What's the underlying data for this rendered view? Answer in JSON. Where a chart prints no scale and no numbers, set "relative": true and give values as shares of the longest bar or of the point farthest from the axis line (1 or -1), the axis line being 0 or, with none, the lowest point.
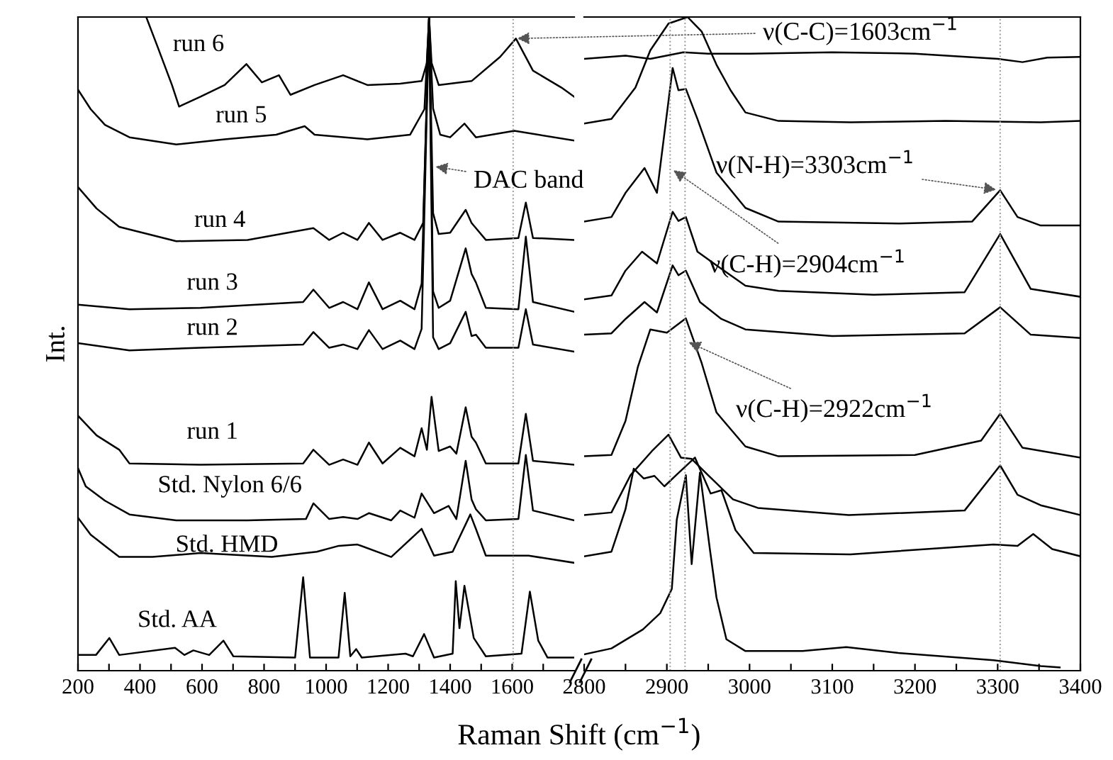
{
  "chart_data": [
    {
      "type": "line",
      "relative": true,
      "ylabel": "Int.",
      "xlabel": "Raman Shift (cm$^{−1}$)",
      "xlim": [
        200,
        1800
      ],
      "xticks": [
        200,
        {
          "value": 300,
          "label": null
        },
        400,
        {
          "value": 500,
          "label": null
        },
        600,
        {
          "value": 700,
          "label": null
        },
        800,
        {
          "value": 900,
          "label": null
        },
        1000,
        {
          "value": 1100,
          "label": null
        },
        1200,
        {
          "value": 1300,
          "label": null
        },
        1400,
        {
          "value": 1500,
          "label": null
        },
        1600,
        {
          "value": 1700,
          "label": null
        }
      ],
      "marker": "none",
      "line_style": "solid",
      "ref_lines": [
        {
          "axis": "x",
          "value": 1603,
          "color": "#999999",
          "line_style": "dotted"
        }
      ],
      "annotations": [
        {
          "text": "ν(C-C)=1603cm$^{−1}$",
          "x": 1603,
          "y": 0.967
        },
        {
          "text": "DAC band",
          "x": 1340,
          "y": 0.772
        }
      ],
      "series": [
        {
          "name": "run 6",
          "color": "#000000",
          "x": [
            420,
            457,
            503,
            526,
            595,
            673,
            743,
            793,
            848,
            885,
            963,
            1055,
            1133,
            1239,
            1308,
            1325,
            1332,
            1340,
            1363,
            1469,
            1561,
            1612,
            1667,
            1759,
            1800
          ],
          "values": [
            1.0,
            0.954,
            0.896,
            0.863,
            0.878,
            0.896,
            0.928,
            0.9,
            0.911,
            0.881,
            0.896,
            0.911,
            0.896,
            0.898,
            0.902,
            0.93,
            1.0,
            0.93,
            0.896,
            0.902,
            0.939,
            0.967,
            0.918,
            0.892,
            0.878
          ]
        },
        {
          "name": "run 5",
          "color": "#000000",
          "x": [
            200,
            241,
            287,
            366,
            517,
            673,
            839,
            931,
            963,
            1133,
            1271,
            1317,
            1332,
            1345,
            1368,
            1400,
            1446,
            1483,
            1607,
            1800
          ],
          "values": [
            0.889,
            0.859,
            0.835,
            0.816,
            0.805,
            0.813,
            0.82,
            0.833,
            0.82,
            0.813,
            0.82,
            0.859,
            1.0,
            0.86,
            0.82,
            0.816,
            0.837,
            0.816,
            0.826,
            0.811
          ]
        },
        {
          "name": "run 4",
          "color": "#000000",
          "x": [
            200,
            260,
            333,
            517,
            747,
            959,
            1010,
            1055,
            1101,
            1138,
            1182,
            1239,
            1285,
            1313,
            1332,
            1345,
            1363,
            1400,
            1450,
            1469,
            1483,
            1515,
            1620,
            1644,
            1667,
            1800
          ],
          "values": [
            0.74,
            0.707,
            0.679,
            0.657,
            0.659,
            0.677,
            0.659,
            0.67,
            0.659,
            0.685,
            0.659,
            0.67,
            0.659,
            0.685,
            1.0,
            0.7,
            0.668,
            0.67,
            0.705,
            0.685,
            0.677,
            0.659,
            0.662,
            0.716,
            0.662,
            0.659
          ]
        },
        {
          "name": "run 3",
          "color": "#000000",
          "x": [
            200,
            366,
            595,
            926,
            959,
            1010,
            1055,
            1101,
            1138,
            1182,
            1239,
            1285,
            1308,
            1332,
            1345,
            1363,
            1400,
            1450,
            1469,
            1483,
            1515,
            1620,
            1644,
            1667,
            1800
          ],
          "values": [
            0.56,
            0.553,
            0.555,
            0.564,
            0.583,
            0.555,
            0.564,
            0.553,
            0.594,
            0.553,
            0.566,
            0.553,
            0.592,
            1.0,
            0.58,
            0.555,
            0.566,
            0.646,
            0.607,
            0.594,
            0.555,
            0.553,
            0.664,
            0.564,
            0.549
          ]
        },
        {
          "name": "run 2",
          "color": "#000000",
          "x": [
            200,
            366,
            595,
            926,
            959,
            1010,
            1055,
            1101,
            1138,
            1182,
            1239,
            1285,
            1308,
            1332,
            1345,
            1363,
            1400,
            1450,
            1469,
            1483,
            1515,
            1620,
            1644,
            1667,
            1800
          ],
          "values": [
            0.501,
            0.49,
            0.494,
            0.499,
            0.518,
            0.494,
            0.499,
            0.492,
            0.521,
            0.492,
            0.505,
            0.492,
            0.523,
            1.0,
            0.51,
            0.492,
            0.501,
            0.549,
            0.512,
            0.514,
            0.494,
            0.494,
            0.553,
            0.499,
            0.488
          ]
        },
        {
          "name": "run 1",
          "color": "#000000",
          "x": [
            200,
            260,
            333,
            366,
            595,
            926,
            959,
            1010,
            1055,
            1101,
            1138,
            1182,
            1239,
            1285,
            1308,
            1325,
            1340,
            1363,
            1400,
            1420,
            1450,
            1469,
            1483,
            1515,
            1620,
            1644,
            1667,
            1800
          ],
          "values": [
            0.39,
            0.36,
            0.338,
            0.317,
            0.315,
            0.317,
            0.338,
            0.315,
            0.323,
            0.315,
            0.349,
            0.317,
            0.341,
            0.328,
            0.371,
            0.338,
            0.419,
            0.336,
            0.343,
            0.332,
            0.403,
            0.358,
            0.349,
            0.317,
            0.317,
            0.393,
            0.321,
            0.315
          ]
        },
        {
          "name": "Std. Nylon 6/6",
          "color": "#000000",
          "x": [
            200,
            225,
            287,
            366,
            517,
            747,
            935,
            959,
            1010,
            1055,
            1101,
            1138,
            1210,
            1239,
            1285,
            1308,
            1348,
            1395,
            1420,
            1450,
            1469,
            1483,
            1515,
            1620,
            1644,
            1667,
            1800
          ],
          "values": [
            0.31,
            0.282,
            0.26,
            0.239,
            0.23,
            0.23,
            0.232,
            0.256,
            0.232,
            0.235,
            0.232,
            0.241,
            0.23,
            0.245,
            0.234,
            0.271,
            0.241,
            0.252,
            0.232,
            0.321,
            0.262,
            0.247,
            0.23,
            0.232,
            0.33,
            0.245,
            0.23
          ]
        },
        {
          "name": "Std. HMD",
          "color": "#000000",
          "x": [
            200,
            241,
            287,
            333,
            440,
            595,
            825,
            970,
            1041,
            1101,
            1210,
            1308,
            1348,
            1408,
            1465,
            1483,
            1515,
            1653,
            1800
          ],
          "values": [
            0.234,
            0.208,
            0.191,
            0.174,
            0.174,
            0.18,
            0.174,
            0.182,
            0.191,
            0.193,
            0.174,
            0.217,
            0.176,
            0.182,
            0.239,
            0.217,
            0.176,
            0.176,
            0.165
          ]
        },
        {
          "name": "Std. AA",
          "color": "#000000",
          "x": [
            200,
            258,
            301,
            333,
            513,
            543,
            572,
            623,
            669,
            701,
            900,
            926,
            948,
            1040,
            1060,
            1078,
            1097,
            1115,
            1256,
            1280,
            1316,
            1348,
            1408,
            1418,
            1430,
            1446,
            1476,
            1515,
            1630,
            1657,
            1684,
            1714,
            1800
          ],
          "values": [
            0.024,
            0.024,
            0.05,
            0.024,
            0.035,
            0.024,
            0.031,
            0.024,
            0.046,
            0.022,
            0.02,
            0.143,
            0.02,
            0.02,
            0.119,
            0.022,
            0.033,
            0.02,
            0.026,
            0.022,
            0.056,
            0.02,
            0.026,
            0.137,
            0.065,
            0.13,
            0.05,
            0.022,
            0.026,
            0.121,
            0.046,
            0.02,
            0.02
          ]
        }
      ]
    },
    {
      "type": "line",
      "relative": true,
      "xlim": [
        2800,
        3400
      ],
      "xticks": [
        2800,
        {
          "value": 2850,
          "label": null
        },
        2900,
        {
          "value": 2950,
          "label": null
        },
        3000,
        {
          "value": 3050,
          "label": null
        },
        3100,
        {
          "value": 3150,
          "label": null
        },
        3200,
        {
          "value": 3250,
          "label": null
        },
        3300,
        {
          "value": 3350,
          "label": null
        },
        3400
      ],
      "marker": "none",
      "line_style": "solid",
      "ref_lines": [
        {
          "axis": "x",
          "value": 2904,
          "color": "#999999",
          "line_style": "dotted"
        },
        {
          "axis": "x",
          "value": 2922,
          "color": "#999999",
          "line_style": "dotted"
        },
        {
          "axis": "x",
          "value": 3303,
          "color": "#999999",
          "line_style": "dotted"
        }
      ],
      "annotations": [
        {
          "text": "ν(N-H)=3303cm$^{−1}$",
          "x": 3303,
          "y": 0.735
        },
        {
          "text": "ν(C-H)=2904cm$^{−1}$",
          "x": 2904,
          "y": 0.769
        },
        {
          "text": "ν(C-H)=2922cm$^{−1}$",
          "x": 2922,
          "y": 0.505
        }
      ],
      "series": [
        {
          "color": "#000000",
          "x": [
            2800,
            2850,
            2880,
            2920,
            2950,
            3000,
            3100,
            3200,
            3300,
            3330,
            3360,
            3400
          ],
          "values": [
            0.936,
            0.941,
            0.936,
            0.946,
            0.944,
            0.944,
            0.946,
            0.944,
            0.936,
            0.931,
            0.938,
            0.939
          ]
        },
        {
          "color": "#000000",
          "x": [
            2800,
            2833,
            2862,
            2880,
            2902,
            2925,
            2942,
            2960,
            2977,
            2995,
            3035,
            3122,
            3237,
            3352,
            3400
          ],
          "values": [
            0.837,
            0.844,
            0.892,
            0.949,
            0.99,
            1.0,
            0.978,
            0.927,
            0.888,
            0.854,
            0.841,
            0.839,
            0.841,
            0.839,
            0.841
          ]
        },
        {
          "color": "#000000",
          "x": [
            2800,
            2833,
            2850,
            2873,
            2888,
            2907,
            2914,
            2923,
            2937,
            2960,
            2995,
            3035,
            3180,
            3269,
            3303,
            3324,
            3352,
            3400
          ],
          "values": [
            0.687,
            0.694,
            0.731,
            0.769,
            0.731,
            0.922,
            0.888,
            0.89,
            0.844,
            0.762,
            0.708,
            0.687,
            0.684,
            0.687,
            0.735,
            0.694,
            0.681,
            0.681
          ]
        },
        {
          "color": "#000000",
          "x": [
            2800,
            2833,
            2850,
            2870,
            2888,
            2907,
            2914,
            2923,
            2937,
            2960,
            2995,
            3035,
            3150,
            3260,
            3303,
            3340,
            3400
          ],
          "values": [
            0.568,
            0.574,
            0.612,
            0.641,
            0.623,
            0.702,
            0.688,
            0.694,
            0.641,
            0.62,
            0.589,
            0.581,
            0.575,
            0.579,
            0.668,
            0.584,
            0.572
          ]
        },
        {
          "color": "#000000",
          "x": [
            2800,
            2833,
            2850,
            2873,
            2888,
            2907,
            2914,
            2923,
            2940,
            2966,
            2995,
            3100,
            3260,
            3303,
            3340,
            3400
          ],
          "values": [
            0.514,
            0.516,
            0.538,
            0.564,
            0.548,
            0.62,
            0.605,
            0.612,
            0.564,
            0.538,
            0.522,
            0.512,
            0.516,
            0.556,
            0.514,
            0.509
          ]
        },
        {
          "color": "#000000",
          "x": [
            2800,
            2833,
            2850,
            2865,
            2880,
            2900,
            2923,
            2942,
            2960,
            2995,
            3035,
            3200,
            3280,
            3303,
            3330,
            3400
          ],
          "values": [
            0.328,
            0.33,
            0.382,
            0.465,
            0.522,
            0.517,
            0.539,
            0.471,
            0.395,
            0.343,
            0.328,
            0.33,
            0.352,
            0.393,
            0.341,
            0.326
          ]
        },
        {
          "color": "#000000",
          "x": [
            2800,
            2833,
            2856,
            2882,
            2902,
            2917,
            2930,
            2950,
            2980,
            3010,
            3120,
            3260,
            3303,
            3324,
            3352,
            3400
          ],
          "values": [
            0.238,
            0.242,
            0.299,
            0.336,
            0.361,
            0.326,
            0.324,
            0.299,
            0.262,
            0.249,
            0.238,
            0.245,
            0.314,
            0.269,
            0.253,
            0.238
          ]
        },
        {
          "color": "#000000",
          "x": [
            2800,
            2833,
            2850,
            2860,
            2872,
            2885,
            2897,
            2912,
            2934,
            2953,
            2966,
            2983,
            3005,
            3122,
            3295,
            3324,
            3343,
            3366,
            3400
          ],
          "values": [
            0.175,
            0.182,
            0.247,
            0.309,
            0.294,
            0.298,
            0.282,
            0.3,
            0.326,
            0.271,
            0.276,
            0.215,
            0.18,
            0.178,
            0.193,
            0.191,
            0.209,
            0.186,
            0.175
          ]
        },
        {
          "color": "#000000",
          "x": [
            2800,
            2833,
            2871,
            2892,
            2906,
            2912,
            2923,
            2930,
            2940,
            2952,
            2960,
            2972,
            2995,
            3064,
            3117,
            3180,
            3295,
            3352,
            3375
          ],
          "values": [
            0.025,
            0.034,
            0.063,
            0.088,
            0.125,
            0.231,
            0.299,
            0.163,
            0.303,
            0.186,
            0.112,
            0.048,
            0.03,
            0.03,
            0.036,
            0.027,
            0.016,
            0.007,
            0.005
          ]
        }
      ]
    }
  ]
}
